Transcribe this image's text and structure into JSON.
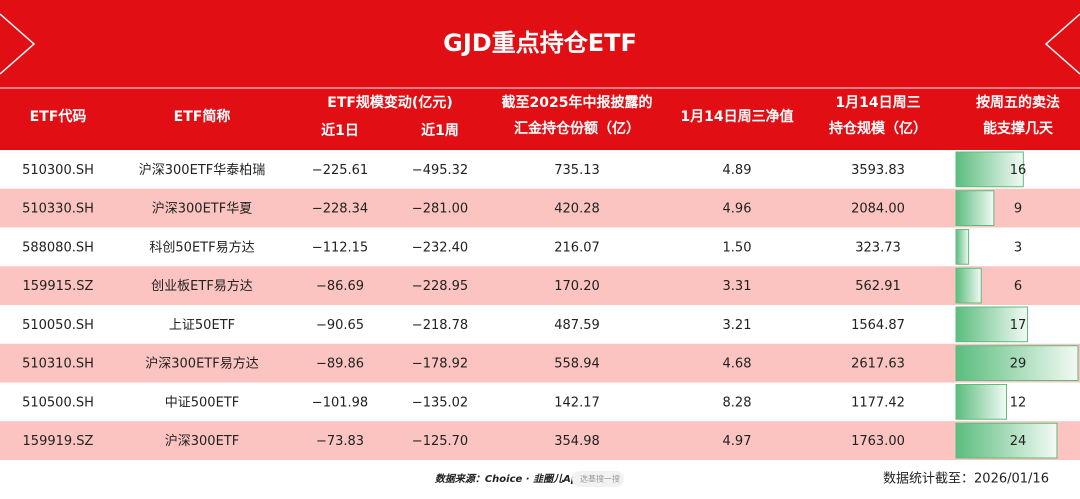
{
  "header": {
    "title": "GJD重点持仓ETF"
  },
  "table": {
    "columns": {
      "code": "ETF代码",
      "name": "ETF简称",
      "change_group": "ETF规模变动(亿元)",
      "change_1d": "近1日",
      "change_1w": "近1周",
      "holding": [
        "截至2025年中报披露的",
        "汇金持仓份额（亿）"
      ],
      "nav": "1月14日周三净值",
      "scale": [
        "1月14日周三",
        "持仓规模（亿）"
      ],
      "days": [
        "按周五的卖法",
        "能支撑几天"
      ]
    },
    "rows": [
      [
        "510300.SH",
        "沪深300ETF华泰柏瑞",
        "−225.61",
        "−495.32",
        "735.13",
        "4.89",
        "3593.83",
        16
      ],
      [
        "510330.SH",
        "沪深300ETF华夏",
        "−228.34",
        "−281.00",
        "420.28",
        "4.96",
        "2084.00",
        9
      ],
      [
        "588080.SH",
        "科创50ETF易方达",
        "−112.15",
        "−232.40",
        "216.07",
        "1.50",
        "323.73",
        3
      ],
      [
        "159915.SZ",
        "创业板ETF易方达",
        "−86.69",
        "−228.95",
        "170.20",
        "3.31",
        "562.91",
        6
      ],
      [
        "510050.SH",
        "上证50ETF",
        "−90.65",
        "−218.78",
        "487.59",
        "3.21",
        "1564.87",
        17
      ],
      [
        "510310.SH",
        "沪深300ETF易方达",
        "−89.86",
        "−178.92",
        "558.94",
        "4.68",
        "2617.63",
        29
      ],
      [
        "510500.SH",
        "中证500ETF",
        "−101.98",
        "−135.02",
        "142.17",
        "8.28",
        "1177.42",
        12
      ],
      [
        "159919.SZ",
        "沪深300ETF",
        "−73.83",
        "−125.70",
        "354.98",
        "4.97",
        "1763.00",
        24
      ]
    ]
  },
  "footer": {
    "source": "数据来源：Choice · 韭圈儿App",
    "search": "选基搜一搜",
    "date": "数据统计截至：2026/01/16"
  }
}
